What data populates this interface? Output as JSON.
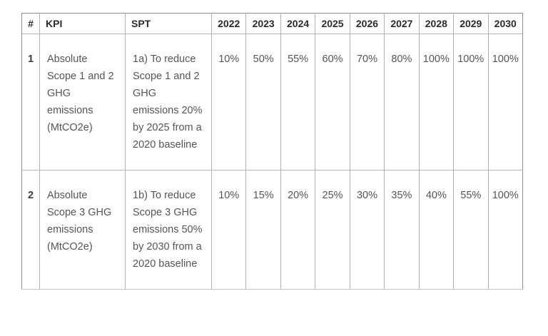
{
  "colors": {
    "background": "#ffffff",
    "border_outer": "#8d8d8d",
    "border_inner": "#b2b2b2",
    "header_text": "#2b2b2b",
    "body_text": "#555555"
  },
  "chart_data": {
    "type": "table",
    "columns": [
      "#",
      "KPI",
      "SPT",
      "2022",
      "2023",
      "2024",
      "2025",
      "2026",
      "2027",
      "2028",
      "2029",
      "2030"
    ],
    "rows": [
      [
        "1",
        "Absolute Scope 1 and 2 GHG emissions (MtCO2e)",
        "1a) To reduce Scope 1 and 2 GHG emissions 20% by 2025 from a 2020 baseline",
        "10%",
        "50%",
        "55%",
        "60%",
        "70%",
        "80%",
        "100%",
        "100%",
        "100%"
      ],
      [
        "2",
        "Absolute Scope 3 GHG emissions (MtCO2e)",
        "1b) To reduce Scope 3 GHG emissions 50% by 2030 from a 2020 baseline",
        "10%",
        "15%",
        "20%",
        "25%",
        "30%",
        "35%",
        "40%",
        "55%",
        "100%"
      ]
    ]
  }
}
